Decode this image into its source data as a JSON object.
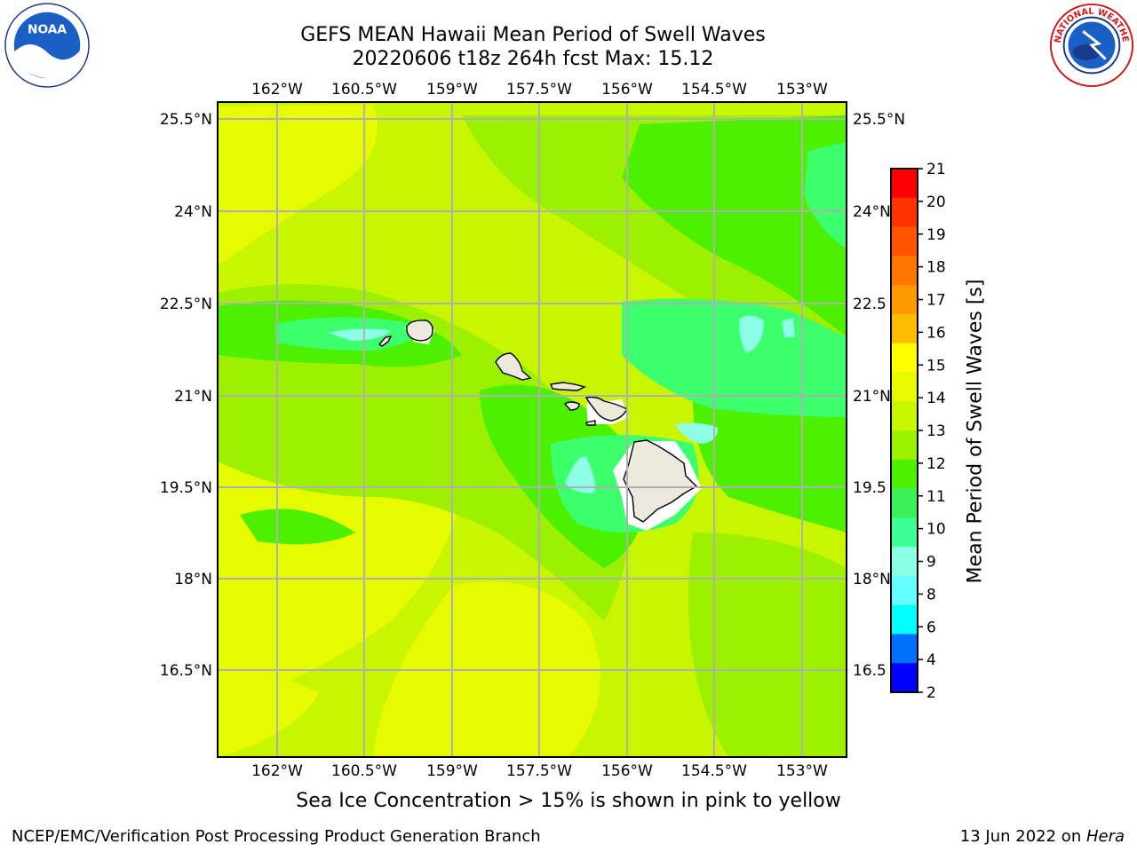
{
  "header": {
    "title_line1": "GEFS MEAN Hawaii Mean Period of Swell Waves",
    "title_line2": "20220606 t18z 264h fcst   Max: 15.12"
  },
  "logos": {
    "left": {
      "name": "NOAA",
      "text": "NOAA",
      "icon": "noaa-logo"
    },
    "right": {
      "name": "National Weather Service",
      "text": "NATIONAL WEATHER SERVICE",
      "icon": "nws-logo"
    }
  },
  "map": {
    "lon_labels": [
      "162°W",
      "160.5°W",
      "159°W",
      "157.5°W",
      "156°W",
      "154.5°W",
      "153°W"
    ],
    "lat_labels": [
      "25.5°N",
      "24°N",
      "22.5°N",
      "21°N",
      "19.5°N",
      "18°N",
      "16.5°N"
    ],
    "lat_labels_right": [
      "25.5°N",
      "24°N",
      "22.5",
      "21°N",
      "19.5",
      "18°N",
      "16.5"
    ],
    "field_colors": {
      "yellow": "#e6fa00",
      "yellow_green": "#c8f500",
      "light_green": "#9cf000",
      "green": "#4cf000",
      "aqua_green": "#3cff6e",
      "cyan_light": "#8cffe6",
      "land": "#ede9dc"
    }
  },
  "colorbar": {
    "label": "Mean Period of Swell Waves [s]",
    "ticks": [
      "21",
      "20",
      "19",
      "18",
      "17",
      "16",
      "15",
      "14",
      "13",
      "12",
      "11",
      "10",
      "9",
      "8",
      "6",
      "4",
      "2"
    ],
    "colors": [
      "#ff0000",
      "#ff3300",
      "#ff5500",
      "#ff7700",
      "#ff9900",
      "#ffbb00",
      "#ffff00",
      "#e6fa00",
      "#c8f500",
      "#9cf000",
      "#4cf000",
      "#3cf05a",
      "#3cff96",
      "#8cffe6",
      "#64ffff",
      "#00ffff",
      "#0070ff",
      "#0000ff"
    ]
  },
  "subtitle": "Sea Ice Concentration > 15% is shown in pink to yellow",
  "footer": {
    "left": "NCEP/EMC/Verification Post Processing Product Generation Branch",
    "date": "13 Jun 2022 on ",
    "host": "Hera"
  }
}
